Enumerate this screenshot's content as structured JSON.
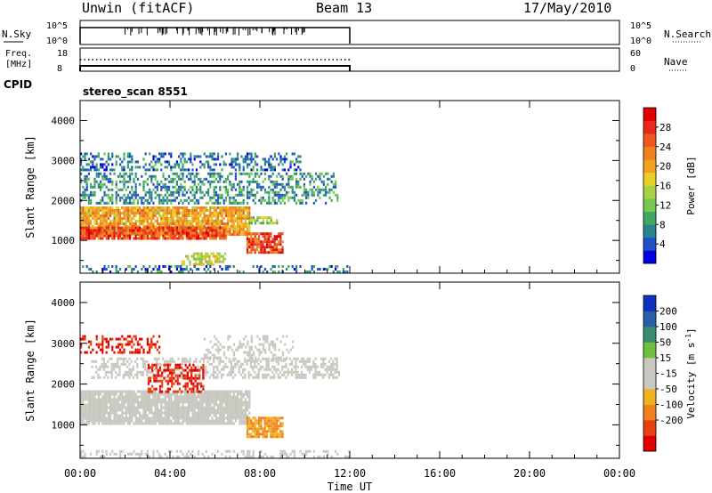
{
  "header": {
    "station": "Unwin (fitACF)",
    "beam": "Beam 13",
    "date": "17/May/2010"
  },
  "strips": {
    "nsky_label": "N.Sky",
    "freq_label_1": "Freq.",
    "freq_label_2": "[MHz]",
    "cpid_label": "CPID",
    "nsearch_label": "N.Search",
    "nave_label": "Nave",
    "nsky_ticks": [
      "10^5",
      "10^0"
    ],
    "nsearch_ticks": [
      "10^5",
      "10^0"
    ],
    "freq_ticks": [
      "18",
      "8"
    ],
    "nave_ticks": [
      "60",
      "0"
    ],
    "cpid_text": "stereo_scan 8551"
  },
  "x_axis": {
    "label": "Time UT",
    "range_hours": [
      0,
      24
    ],
    "ticks": [
      "00:00",
      "04:00",
      "08:00",
      "12:00",
      "16:00",
      "20:00",
      "00:00"
    ],
    "data_end_hour": 12
  },
  "chart_data": [
    {
      "type": "heatmap",
      "name": "Power",
      "xlabel": "Time UT",
      "ylabel": "Slant Range [km]",
      "xlim_hours": [
        0,
        24
      ],
      "ylim_km": [
        180,
        4500
      ],
      "yticks": [
        1000,
        2000,
        3000,
        4000
      ],
      "colorbar": {
        "label": "Power [dB]",
        "ticks": [
          4,
          8,
          12,
          16,
          20,
          24,
          28
        ],
        "range": [
          0,
          32
        ],
        "colors": [
          "#0000e0",
          "#2050c8",
          "#28848c",
          "#40a860",
          "#78c850",
          "#a8d048",
          "#e8d028",
          "#f4a020",
          "#f08020",
          "#ec5820",
          "#e82818",
          "#e00000"
        ]
      },
      "regions": [
        {
          "t0": 0.0,
          "t1": 7.5,
          "r0": 1150,
          "r1": 1850,
          "value": 20,
          "density": 0.9
        },
        {
          "t0": 7.5,
          "t1": 8.8,
          "r0": 1400,
          "r1": 1600,
          "value": 14,
          "density": 0.7
        },
        {
          "t0": 0.0,
          "t1": 6.5,
          "r0": 1050,
          "r1": 1350,
          "value": 26,
          "density": 0.85
        },
        {
          "t0": 7.4,
          "t1": 9.0,
          "r0": 700,
          "r1": 1200,
          "value": 26,
          "density": 0.85
        },
        {
          "t0": 4.5,
          "t1": 6.5,
          "r0": 400,
          "r1": 700,
          "value": 16,
          "density": 0.6
        },
        {
          "t0": 0.0,
          "t1": 11.5,
          "r0": 1950,
          "r1": 2700,
          "value": 8,
          "density": 0.45
        },
        {
          "t0": 0.0,
          "t1": 9.8,
          "r0": 2750,
          "r1": 3200,
          "value": 6,
          "density": 0.4
        },
        {
          "t0": 0.0,
          "t1": 12.0,
          "r0": 200,
          "r1": 380,
          "value": 6,
          "density": 0.3
        }
      ]
    },
    {
      "type": "heatmap",
      "name": "Velocity",
      "xlabel": "Time UT",
      "ylabel": "Slant Range [km]",
      "xlim_hours": [
        0,
        24
      ],
      "ylim_km": [
        180,
        4500
      ],
      "yticks": [
        1000,
        2000,
        3000,
        4000
      ],
      "colorbar": {
        "label": "Velocity [m s^-1]",
        "ticks": [
          200,
          100,
          50,
          15,
          -15,
          -50,
          -100,
          -200
        ],
        "colors": [
          "#1030c0",
          "#2860a8",
          "#3c8c70",
          "#70c040",
          "#c8c8c0",
          "#c8c8c0",
          "#f0b020",
          "#f08020",
          "#e84010",
          "#e00000"
        ]
      },
      "regions": [
        {
          "t0": 0.0,
          "t1": 7.5,
          "r0": 1050,
          "r1": 1850,
          "value": 0,
          "density": 0.9
        },
        {
          "t0": 0.5,
          "t1": 11.5,
          "r0": 2150,
          "r1": 2650,
          "value": 5,
          "density": 0.5
        },
        {
          "t0": 7.4,
          "t1": 9.0,
          "r0": 700,
          "r1": 1200,
          "value": -50,
          "density": 0.85
        },
        {
          "t0": 3.0,
          "t1": 5.5,
          "r0": 1800,
          "r1": 2500,
          "value": -200,
          "density": 0.55
        },
        {
          "t0": 0.0,
          "t1": 3.5,
          "r0": 2800,
          "r1": 3200,
          "value": -200,
          "density": 0.4
        },
        {
          "t0": 5.5,
          "t1": 9.5,
          "r0": 2600,
          "r1": 3200,
          "value": 20,
          "density": 0.3
        },
        {
          "t0": 0.0,
          "t1": 12.0,
          "r0": 200,
          "r1": 380,
          "value": 10,
          "density": 0.3
        }
      ]
    }
  ]
}
